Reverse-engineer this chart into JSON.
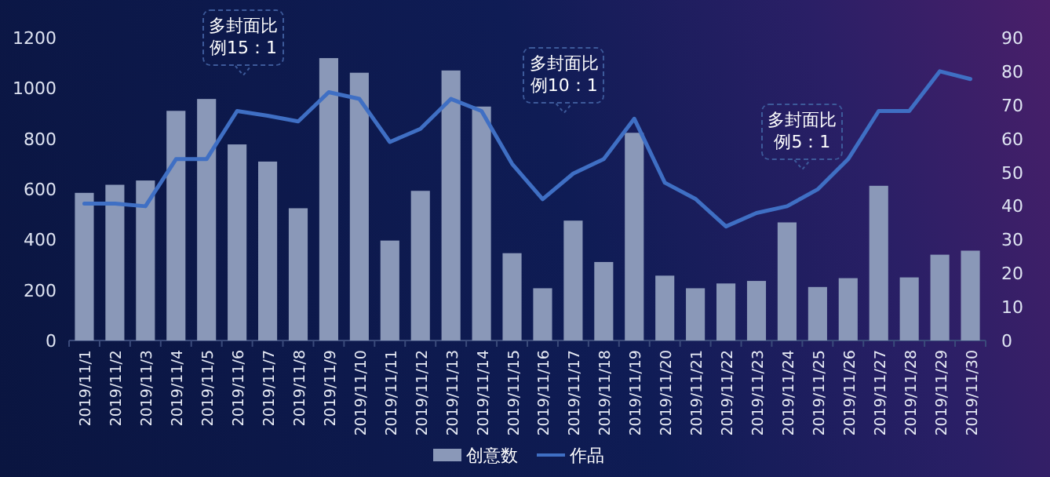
{
  "chart_data": {
    "type": "bar",
    "categories": [
      "2019/11/1",
      "2019/11/2",
      "2019/11/3",
      "2019/11/4",
      "2019/11/5",
      "2019/11/6",
      "2019/11/7",
      "2019/11/8",
      "2019/11/9",
      "2019/11/10",
      "2019/11/11",
      "2019/11/12",
      "2019/11/13",
      "2019/11/14",
      "2019/11/15",
      "2019/11/16",
      "2019/11/17",
      "2019/11/18",
      "2019/11/19",
      "2019/11/20",
      "2019/11/21",
      "2019/11/22",
      "2019/11/23",
      "2019/11/24",
      "2019/11/25",
      "2019/11/26",
      "2019/11/27",
      "2019/11/28",
      "2019/11/29",
      "2019/11/30"
    ],
    "series": [
      {
        "name": "创意数",
        "color": "#8a98b8",
        "values": [
          585,
          617,
          634,
          910,
          957,
          777,
          709,
          524,
          1119,
          1061,
          396,
          593,
          1070,
          927,
          346,
          207,
          475,
          311,
          823,
          257,
          207,
          226,
          236,
          468,
          212,
          247,
          613,
          250,
          340,
          356
        ]
      },
      {
        "name": "作品",
        "type": "line",
        "axis": "y2",
        "color": "#3f6fc4",
        "values": [
          40.7,
          40.7,
          39.9,
          53.9,
          53.9,
          68.2,
          66.8,
          65.1,
          73.8,
          71.8,
          59.0,
          62.9,
          71.8,
          68.2,
          52.5,
          42.0,
          49.6,
          53.9,
          65.9,
          46.9,
          42.1,
          33.9,
          37.9,
          39.9,
          44.9,
          53.9,
          68.2,
          68.2,
          80.0,
          77.7
        ]
      }
    ],
    "ylim": [
      0,
      1200
    ],
    "yticks": [
      0,
      200,
      400,
      600,
      800,
      1000,
      1200
    ],
    "y2lim": [
      0,
      90
    ],
    "y2ticks": [
      0,
      10,
      20,
      30,
      40,
      50,
      60,
      70,
      80,
      90
    ],
    "legend": "bottom",
    "annotations": [
      "多封面比例15：1",
      "多封面比例10：1",
      "多封面比例5：1"
    ]
  }
}
